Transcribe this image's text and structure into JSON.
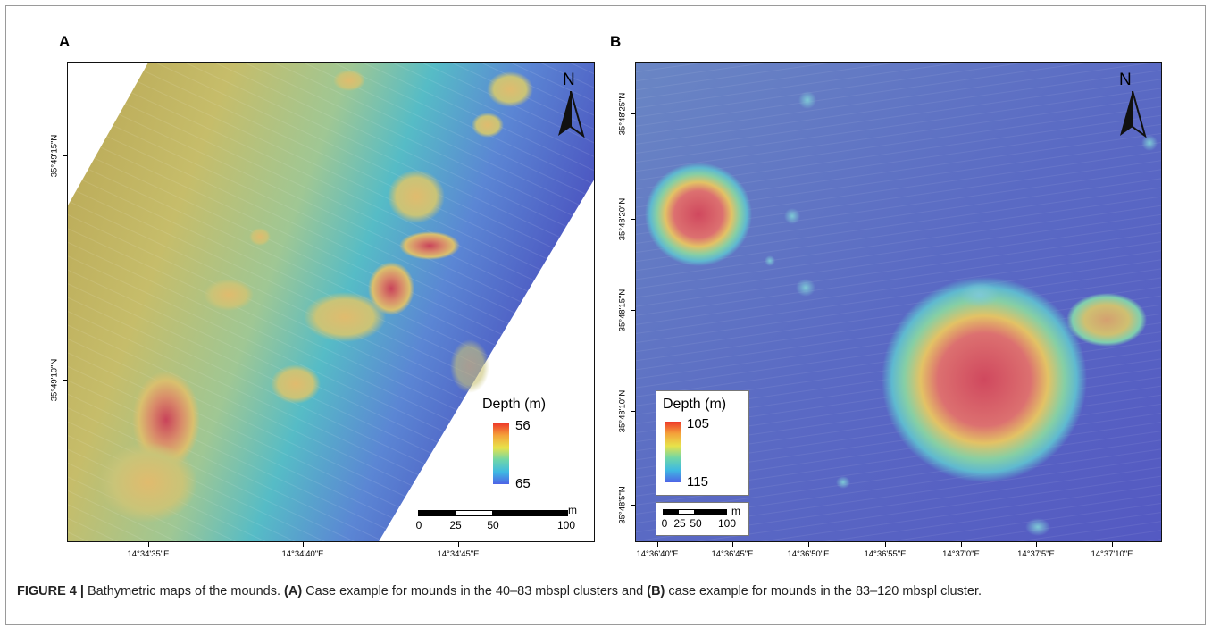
{
  "panel_a": {
    "letter": "A",
    "north": "N",
    "lat_labels": [
      "35°49'15\"N",
      "35°49'10\"N"
    ],
    "lon_labels": [
      "14°34'35\"E",
      "14°34'40\"E",
      "14°34'45\"E"
    ],
    "legend": {
      "title": "Depth (m)",
      "max": "56",
      "min": "65"
    },
    "scale": {
      "unit": "m",
      "ticks": [
        "0",
        "25",
        "50",
        "100"
      ]
    }
  },
  "panel_b": {
    "letter": "B",
    "north": "N",
    "lat_labels": [
      "35°48'25\"N",
      "35°48'20\"N",
      "35°48'15\"N",
      "35°48'10\"N",
      "35°48'5\"N"
    ],
    "lon_labels": [
      "14°36'40\"E",
      "14°36'45\"E",
      "14°36'50\"E",
      "14°36'55\"E",
      "14°37'0\"E",
      "14°37'5\"E",
      "14°37'10\"E"
    ],
    "legend": {
      "title": "Depth (m)",
      "max": "105",
      "min": "115"
    },
    "scale": {
      "unit": "m",
      "ticks": [
        "0",
        "25",
        "50",
        "100"
      ]
    }
  },
  "caption": {
    "figure": "FIGURE 4 |",
    "t1": " Bathymetric maps of the mounds. ",
    "a": "(A)",
    "t2": " Case example for mounds in the 40–83 mbspl clusters and ",
    "b": "(B)",
    "t3": " case example for mounds in the 83–120 mbspl cluster."
  },
  "colors": {
    "deep": "#4b55c8",
    "mid": "#3fb9c9",
    "shallow": "#c8b45a",
    "peak": "#d2344a"
  }
}
